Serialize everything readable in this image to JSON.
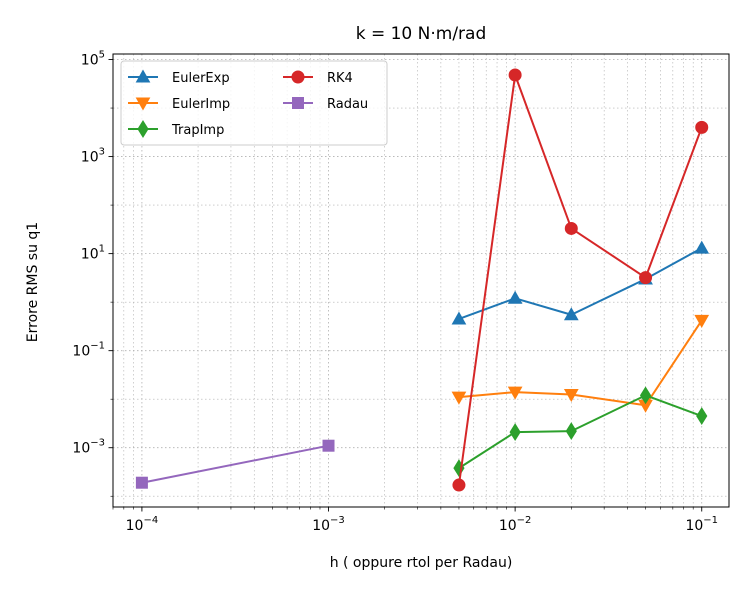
{
  "chart_data": {
    "type": "line",
    "title": "k = 10 N·m/rad",
    "xlabel": "h  ( oppure  rtol per Radau)",
    "ylabel": "Errore RMS su q1",
    "x_scale": "log",
    "y_scale": "log",
    "xlim": [
      7e-05,
      0.14
    ],
    "ylim": [
      6e-05,
      130000
    ],
    "grid": true,
    "legend_position": "top-left",
    "x_ticks": [
      {
        "value": 0.0001,
        "base": "10",
        "exp": "−4"
      },
      {
        "value": 0.001,
        "base": "10",
        "exp": "−3"
      },
      {
        "value": 0.01,
        "base": "10",
        "exp": "−2"
      },
      {
        "value": 0.1,
        "base": "10",
        "exp": "−1"
      }
    ],
    "y_ticks": [
      {
        "value": 0.001,
        "base": "10",
        "exp": "−3"
      },
      {
        "value": 0.1,
        "base": "10",
        "exp": "−1"
      },
      {
        "value": 10,
        "base": "10",
        "exp": "1"
      },
      {
        "value": 1000,
        "base": "10",
        "exp": "3"
      },
      {
        "value": 100000,
        "base": "10",
        "exp": "5"
      }
    ],
    "series": [
      {
        "name": "EulerExp",
        "color": "#1f77b4",
        "marker": "triangle-up",
        "x": [
          0.005,
          0.01,
          0.02,
          0.05,
          0.1
        ],
        "y": [
          0.45,
          1.2,
          0.55,
          3.0,
          13
        ]
      },
      {
        "name": "EulerImp",
        "color": "#ff7f0e",
        "marker": "triangle-down",
        "x": [
          0.005,
          0.01,
          0.02,
          0.05,
          0.1
        ],
        "y": [
          0.011,
          0.014,
          0.0125,
          0.0075,
          0.42
        ]
      },
      {
        "name": "TrapImp",
        "color": "#2ca02c",
        "marker": "thin-diamond",
        "x": [
          0.005,
          0.01,
          0.02,
          0.05,
          0.1
        ],
        "y": [
          0.00038,
          0.0021,
          0.0022,
          0.012,
          0.0045
        ]
      },
      {
        "name": "RK4",
        "color": "#d62728",
        "marker": "circle",
        "x": [
          0.005,
          0.01,
          0.02,
          0.05,
          0.1
        ],
        "y": [
          0.00017,
          48000,
          33,
          3.2,
          4000
        ]
      },
      {
        "name": "Radau",
        "color": "#9467bd",
        "marker": "square",
        "x": [
          0.0001,
          0.001
        ],
        "y": [
          0.00019,
          0.0011
        ]
      }
    ]
  }
}
